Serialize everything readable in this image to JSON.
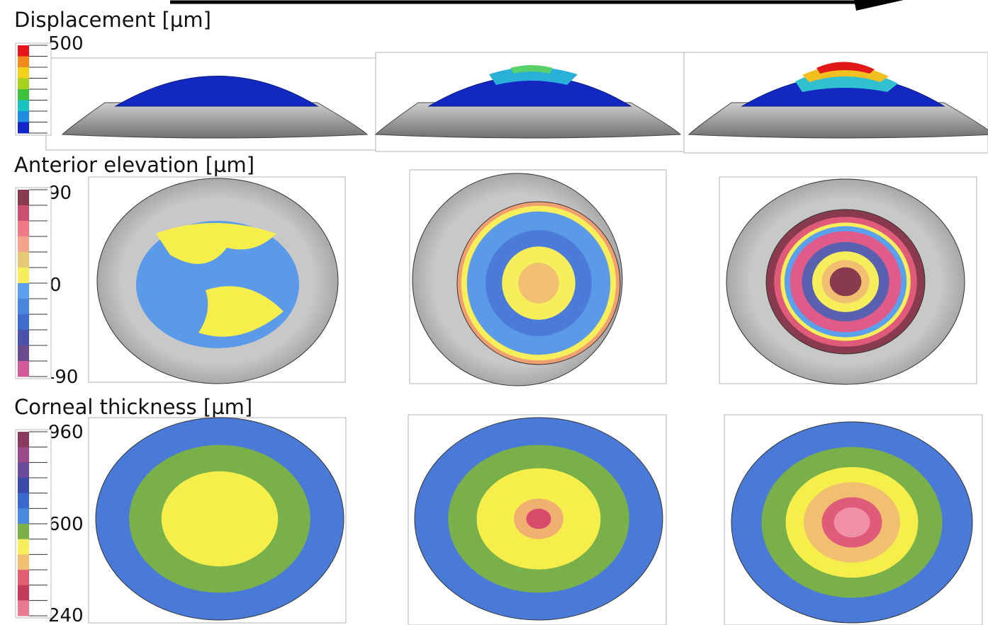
{
  "arrow": true,
  "panels": [
    {
      "title": "Displacement [µm]",
      "scale": {
        "max": "500",
        "min": "0"
      }
    },
    {
      "title": "Anterior elevation [µm]",
      "scale": {
        "max": "90",
        "mid": "0",
        "min": "-90"
      }
    },
    {
      "title": "Corneal thickness [µm]",
      "scale": {
        "max": "960",
        "mid": "600",
        "min": "240"
      }
    }
  ]
}
